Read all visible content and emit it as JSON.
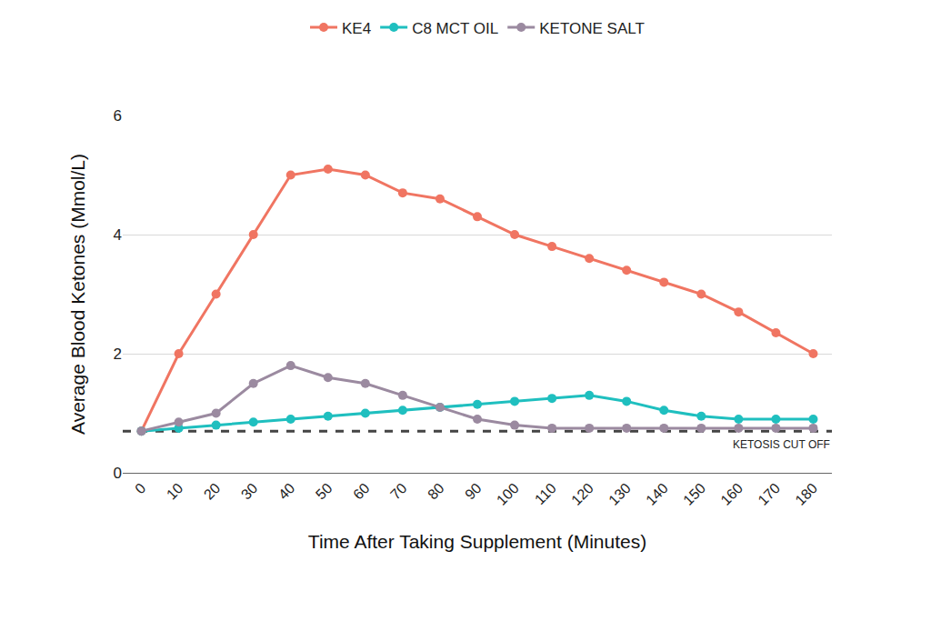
{
  "chart_data": {
    "type": "line",
    "x_label": "Time After Taking Supplement (Minutes)",
    "y_label": "Average Blood Ketones (Mmol/L)",
    "x": [
      0,
      10,
      20,
      30,
      40,
      50,
      60,
      70,
      80,
      90,
      100,
      110,
      120,
      130,
      140,
      150,
      160,
      170,
      180
    ],
    "series": [
      {
        "name": "KE4",
        "color": "#f07562",
        "marker": "circle",
        "line_style": "solid",
        "values": [
          0.7,
          2,
          3,
          4,
          5,
          5.1,
          5,
          4.7,
          4.6,
          4.3,
          4,
          3.8,
          3.6,
          3.4,
          3.2,
          3,
          2.7,
          2.35,
          2
        ]
      },
      {
        "name": "C8 MCT OIL",
        "color": "#1fbfbf",
        "marker": "circle",
        "line_style": "solid",
        "values": [
          0.7,
          0.75,
          0.8,
          0.85,
          0.9,
          0.95,
          1.0,
          1.05,
          1.1,
          1.15,
          1.2,
          1.25,
          1.3,
          1.2,
          1.05,
          0.95,
          0.9,
          0.9,
          0.9
        ]
      },
      {
        "name": "KETONE SALT",
        "color": "#9b8aa0",
        "marker": "circle",
        "line_style": "solid",
        "values": [
          0.7,
          0.85,
          1.0,
          1.5,
          1.8,
          1.6,
          1.5,
          1.3,
          1.1,
          0.9,
          0.8,
          0.75,
          0.75,
          0.75,
          0.75,
          0.75,
          0.75,
          0.75,
          0.75
        ]
      }
    ],
    "xlim": [
      -5,
      185
    ],
    "xticks": [
      0,
      10,
      20,
      30,
      40,
      50,
      60,
      70,
      80,
      90,
      100,
      110,
      120,
      130,
      140,
      150,
      160,
      170,
      180
    ],
    "ylim": [
      0,
      6
    ],
    "yticks": [
      0,
      2,
      4,
      6
    ],
    "grid": true,
    "legend": "top",
    "reference_line": {
      "value": 0.7,
      "label": "KETOSIS CUT OFF",
      "color": "#444444",
      "line_style": "dashed"
    }
  }
}
